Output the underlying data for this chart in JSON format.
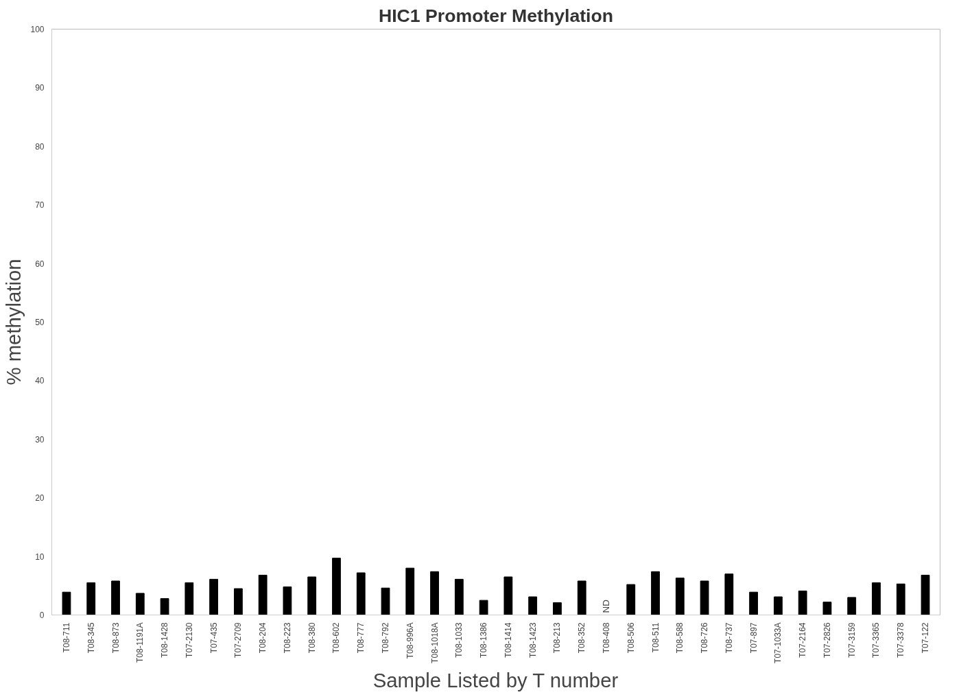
{
  "chart_data": {
    "type": "bar",
    "title": "HIC1 Promoter Methylation",
    "xlabel": "Sample Listed by T number",
    "ylabel": "% methylation",
    "categories": [
      "T08-711",
      "T08-345",
      "T08-873",
      "T08-1191A",
      "T08-1428",
      "T07-2130",
      "T07-435",
      "T07-2709",
      "T08-204",
      "T08-223",
      "T08-380",
      "T08-602",
      "T08-777",
      "T08-792",
      "T08-996A",
      "T08-1018A",
      "T08-1033",
      "T08-1386",
      "T08-1414",
      "T08-1423",
      "T08-213",
      "T08-352",
      "T08-408",
      "T08-506",
      "T08-511",
      "T08-588",
      "T08-726",
      "T08-737",
      "T07-897",
      "T07-1033A",
      "T07-2164",
      "T07-2826",
      "T07-3159",
      "T07-3365",
      "T07-3378",
      "T07-122"
    ],
    "values": [
      3.9,
      5.5,
      5.8,
      3.7,
      2.8,
      5.5,
      6.1,
      4.5,
      6.8,
      4.8,
      6.5,
      9.7,
      7.2,
      4.6,
      8.0,
      7.4,
      6.1,
      2.5,
      6.5,
      3.1,
      2.1,
      5.8,
      null,
      5.2,
      7.4,
      6.3,
      5.8,
      7.0,
      3.9,
      3.1,
      4.1,
      2.2,
      3.0,
      5.5,
      5.3,
      6.8
    ],
    "color": "#000000",
    "ylim": [
      0,
      100
    ],
    "yticks": [
      0,
      10,
      20,
      30,
      40,
      50,
      60,
      70,
      80,
      90,
      100
    ],
    "grid": false,
    "annotations": [
      "ND"
    ]
  }
}
